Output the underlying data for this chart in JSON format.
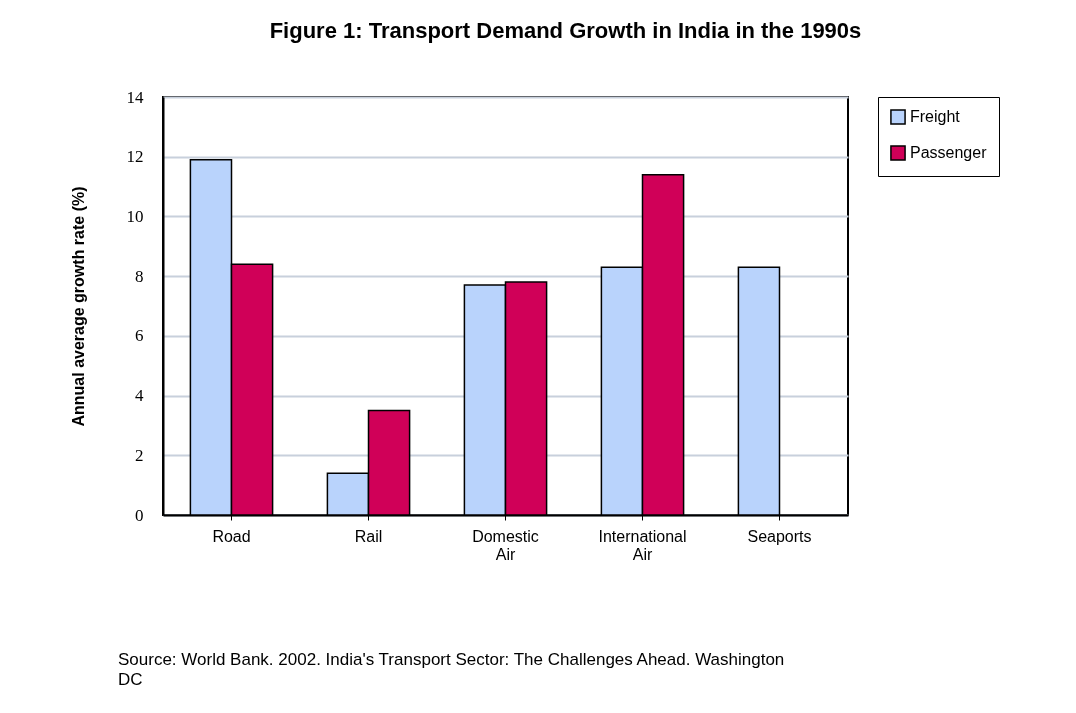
{
  "chart_data": {
    "type": "bar",
    "title": "Figure 1: Transport Demand Growth in India in the 1990s",
    "ylabel": "Annual average growth rate (%)",
    "categories": [
      "Road",
      "Rail",
      "Domestic Air",
      "International Air",
      "Seaports"
    ],
    "series": [
      {
        "name": "Freight",
        "color": "#b9d3fc",
        "values": [
          11.9,
          1.4,
          7.7,
          8.3,
          8.3
        ]
      },
      {
        "name": "Passenger",
        "color": "#d00058",
        "values": [
          8.4,
          3.5,
          7.8,
          11.4,
          null
        ]
      }
    ],
    "ylim": [
      0,
      14
    ],
    "yticks": [
      0,
      2,
      4,
      6,
      8,
      10,
      12,
      14
    ],
    "grid": "y",
    "legend": "right",
    "annotations": [
      "Source: World Bank. 2002. India's Transport Sector: The Challenges Ahead. Washington DC"
    ]
  }
}
